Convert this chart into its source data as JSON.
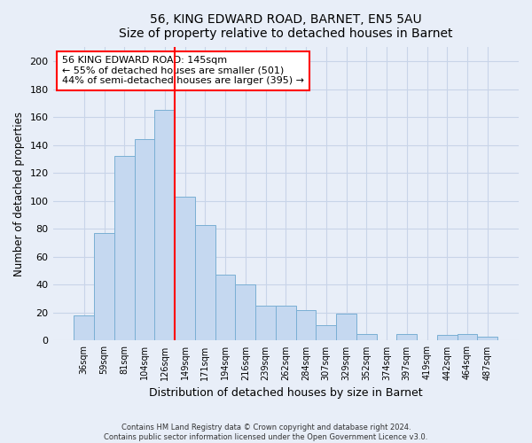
{
  "title": "56, KING EDWARD ROAD, BARNET, EN5 5AU",
  "subtitle": "Size of property relative to detached houses in Barnet",
  "xlabel": "Distribution of detached houses by size in Barnet",
  "ylabel": "Number of detached properties",
  "bar_labels": [
    "36sqm",
    "59sqm",
    "81sqm",
    "104sqm",
    "126sqm",
    "149sqm",
    "171sqm",
    "194sqm",
    "216sqm",
    "239sqm",
    "262sqm",
    "284sqm",
    "307sqm",
    "329sqm",
    "352sqm",
    "374sqm",
    "397sqm",
    "419sqm",
    "442sqm",
    "464sqm",
    "487sqm"
  ],
  "bar_values": [
    18,
    77,
    132,
    144,
    165,
    103,
    83,
    47,
    40,
    25,
    25,
    22,
    11,
    19,
    5,
    0,
    5,
    0,
    4,
    5,
    3
  ],
  "bar_color": "#c5d8f0",
  "bar_edge_color": "#7aafd4",
  "vline_x_index": 5,
  "vline_color": "red",
  "annotation_title": "56 KING EDWARD ROAD: 145sqm",
  "annotation_line1": "← 55% of detached houses are smaller (501)",
  "annotation_line2": "44% of semi-detached houses are larger (395) →",
  "annotation_box_color": "white",
  "annotation_box_edgecolor": "red",
  "ylim": [
    0,
    210
  ],
  "yticks": [
    0,
    20,
    40,
    60,
    80,
    100,
    120,
    140,
    160,
    180,
    200
  ],
  "footer_line1": "Contains HM Land Registry data © Crown copyright and database right 2024.",
  "footer_line2": "Contains public sector information licensed under the Open Government Licence v3.0.",
  "background_color": "#e8eef8",
  "grid_color": "#c8d4e8"
}
